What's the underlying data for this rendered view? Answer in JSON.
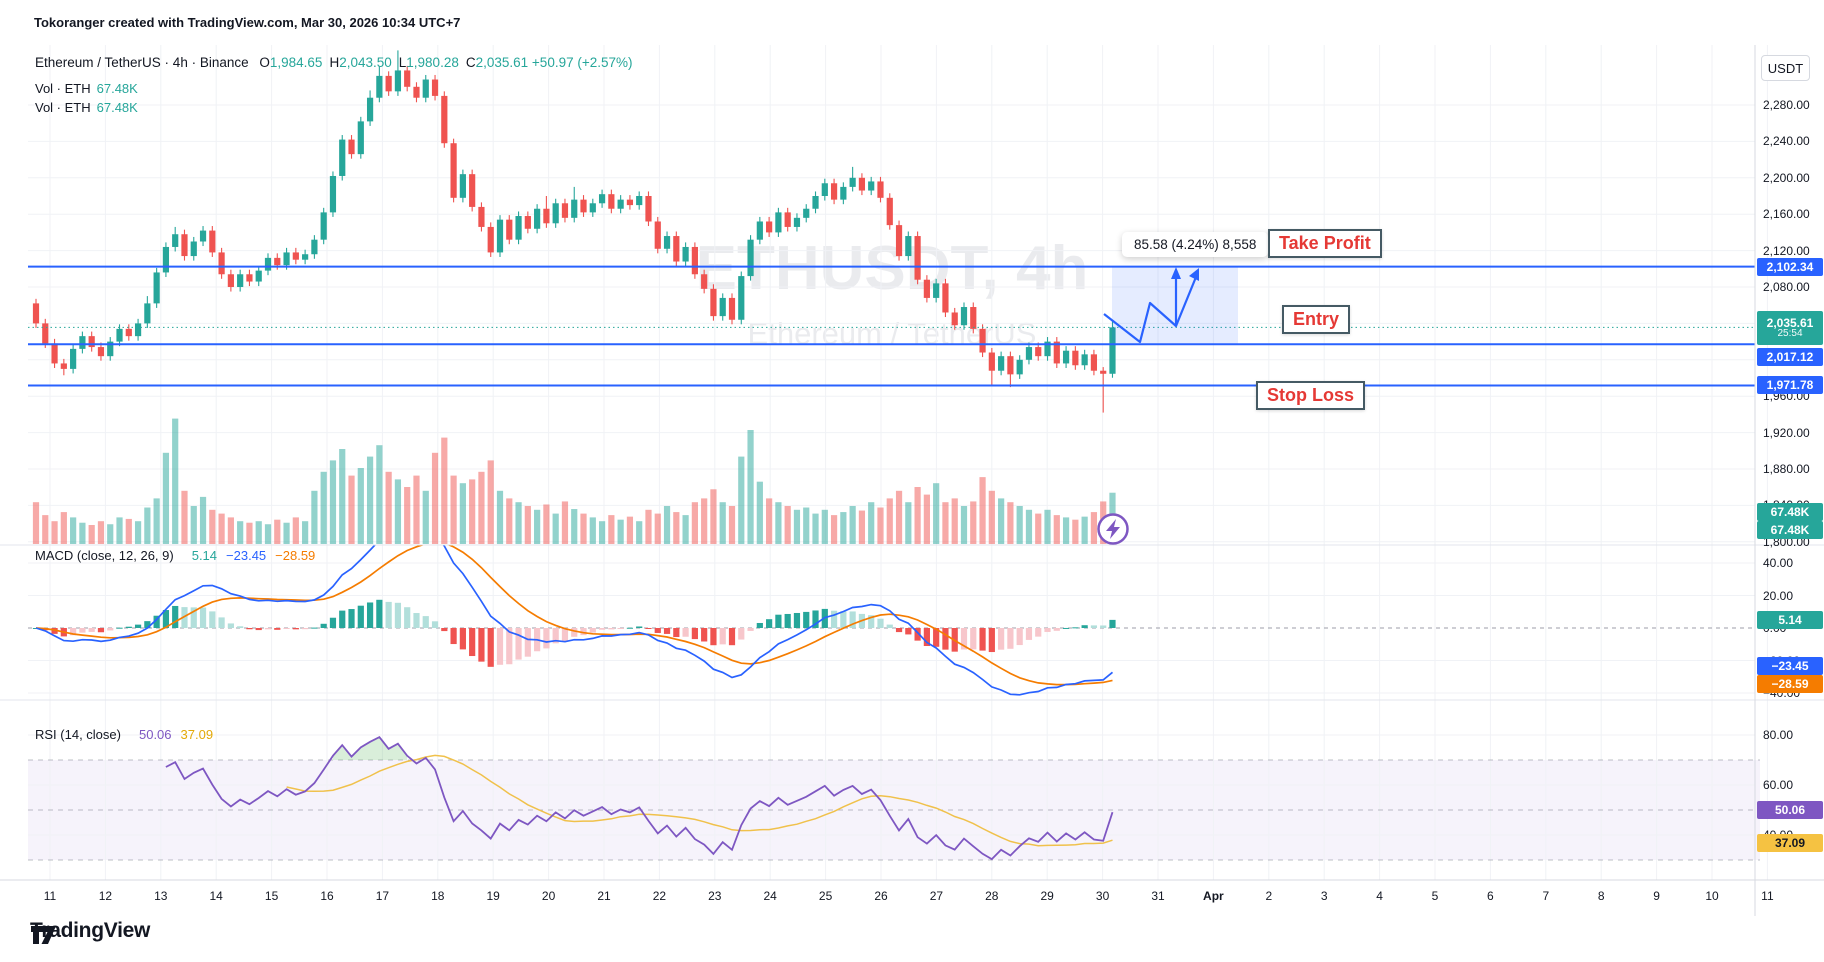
{
  "attribution": "Tokoranger created with TradingView.com, Mar 30, 2026 10:34 UTC+7",
  "header": {
    "symbol_title": "Ethereum / TetherUS · 4h · Binance",
    "ohlc": [
      {
        "k": "O",
        "v": "1,984.65"
      },
      {
        "k": "H",
        "v": "2,043.50"
      },
      {
        "k": "L",
        "v": "1,980.28"
      },
      {
        "k": "C",
        "v": "2,035.61"
      }
    ],
    "change": "+50.97 (+2.57%)",
    "volume_rows": [
      {
        "label": "Vol · ETH",
        "value": "67.48K"
      },
      {
        "label": "Vol · ETH",
        "value": "67.48K"
      }
    ]
  },
  "watermark": {
    "line1": "ETHUSDT, 4h",
    "line2": "Ethereum / TetherUS"
  },
  "price_scale": {
    "currency": "USDT"
  },
  "annotations": {
    "take_profit": "Take Profit",
    "entry": "Entry",
    "stop_loss": "Stop Loss",
    "tooltip": "85.58 (4.24%) 8,558"
  },
  "legends": {
    "macd": {
      "title": "MACD (close, 12, 26, 9)",
      "values": [
        {
          "text": "5.14",
          "color": "#26a69a"
        },
        {
          "text": "−23.45",
          "color": "#2962ff"
        },
        {
          "text": "−28.59",
          "color": "#f57c00"
        }
      ]
    },
    "rsi": {
      "title": "RSI (14, close)",
      "values": [
        {
          "text": "50.06",
          "color": "#7e57c2"
        },
        {
          "text": "37.09",
          "color": "#e3a908"
        }
      ]
    }
  },
  "chips": [
    {
      "id": "tp",
      "text": "2,102.34",
      "bg": "#2962ff",
      "fg": "#fff"
    },
    {
      "id": "last",
      "text": "2,035.61",
      "sub": "25:54",
      "bg": "#26a69a",
      "fg": "#fff"
    },
    {
      "id": "entry",
      "text": "2,017.12",
      "bg": "#2962ff",
      "fg": "#fff"
    },
    {
      "id": "sl",
      "text": "1,971.78",
      "bg": "#2962ff",
      "fg": "#fff"
    },
    {
      "id": "vol1",
      "text": "67.48K",
      "bg": "#26a69a",
      "fg": "#fff"
    },
    {
      "id": "vol2",
      "text": "67.48K",
      "bg": "#26a69a",
      "fg": "#fff"
    },
    {
      "id": "hist",
      "text": "5.14",
      "bg": "#26a69a",
      "fg": "#fff"
    },
    {
      "id": "macd_line",
      "text": "−23.45",
      "bg": "#2962ff",
      "fg": "#fff"
    },
    {
      "id": "signal",
      "text": "−28.59",
      "bg": "#f57c00",
      "fg": "#fff"
    },
    {
      "id": "rsi",
      "text": "50.06",
      "bg": "#7e57c2",
      "fg": "#fff"
    },
    {
      "id": "rsi_ma",
      "text": "37.09",
      "bg": "#f5c242",
      "fg": "#131722"
    }
  ],
  "logo_text": "TradingView",
  "colors": {
    "up": "#26a69a",
    "down": "#ef5350",
    "level_line": "#2962ff",
    "last_price_line": "#26a69a",
    "macd_line": "#2962ff",
    "signal_line": "#f57c00",
    "hist_pos": "#26a69a",
    "hist_pos_weak": "#b2dfdb",
    "hist_neg": "#ef5350",
    "hist_neg_weak": "#f7c6cb",
    "rsi_line": "#7e57c2",
    "rsi_ma_line": "#f0c14b",
    "grid": "#f0f2f6",
    "axis_border": "#d7dae0"
  },
  "chart_data": {
    "type": "candlestick",
    "symbol": "ETHUSDT",
    "interval": "4h",
    "exchange": "Binance",
    "title": "Ethereum / TetherUS · 4h · Binance",
    "levels": {
      "take_profit": 2102.34,
      "entry": 2017.12,
      "stop_loss": 1971.78,
      "last_price": 2035.61
    },
    "last_bar_countdown": "25:54",
    "projection_label": "85.58 (4.24%) 8,558",
    "price_axis_ticks": [
      2280,
      2240,
      2200,
      2160,
      2120,
      2080,
      2040,
      2000,
      1960,
      1920,
      1880,
      1840,
      1800
    ],
    "macd_axis_ticks": [
      40,
      20,
      0,
      -20,
      -40
    ],
    "rsi_axis_ticks": [
      80,
      60,
      40
    ],
    "rsi_bands": [
      70,
      50,
      30
    ],
    "time_labels": [
      "11",
      "12",
      "13",
      "14",
      "15",
      "16",
      "17",
      "18",
      "19",
      "20",
      "21",
      "22",
      "23",
      "24",
      "25",
      "26",
      "27",
      "28",
      "29",
      "30",
      "31",
      "Apr",
      "2",
      "3",
      "4",
      "5",
      "6",
      "7",
      "8",
      "9",
      "10",
      "11"
    ],
    "candles": [
      [
        2062,
        2067,
        2035,
        2040
      ],
      [
        2040,
        2045,
        2013,
        2018
      ],
      [
        2018,
        2023,
        1991,
        1996
      ],
      [
        1996,
        2001,
        1983,
        1990
      ],
      [
        1990,
        2017,
        1985,
        2012
      ],
      [
        2012,
        2031,
        2007,
        2026
      ],
      [
        2026,
        2031,
        2009,
        2014
      ],
      [
        2014,
        2019,
        1999,
        2004
      ],
      [
        2004,
        2025,
        1999,
        2020
      ],
      [
        2020,
        2039,
        2015,
        2034
      ],
      [
        2034,
        2039,
        2021,
        2026
      ],
      [
        2026,
        2045,
        2021,
        2040
      ],
      [
        2040,
        2070,
        2035,
        2062
      ],
      [
        2062,
        2101,
        2057,
        2096
      ],
      [
        2096,
        2129,
        2091,
        2124
      ],
      [
        2124,
        2146,
        2119,
        2138
      ],
      [
        2138,
        2143,
        2109,
        2114
      ],
      [
        2114,
        2135,
        2109,
        2130
      ],
      [
        2130,
        2147,
        2125,
        2142
      ],
      [
        2142,
        2147,
        2113,
        2118
      ],
      [
        2118,
        2123,
        2089,
        2094
      ],
      [
        2094,
        2099,
        2075,
        2080
      ],
      [
        2080,
        2099,
        2075,
        2094
      ],
      [
        2094,
        2099,
        2081,
        2086
      ],
      [
        2086,
        2103,
        2081,
        2098
      ],
      [
        2098,
        2117,
        2093,
        2112
      ],
      [
        2112,
        2117,
        2099,
        2104
      ],
      [
        2104,
        2123,
        2099,
        2118
      ],
      [
        2118,
        2123,
        2105,
        2110
      ],
      [
        2110,
        2121,
        2105,
        2116
      ],
      [
        2116,
        2137,
        2111,
        2132
      ],
      [
        2132,
        2167,
        2127,
        2162
      ],
      [
        2162,
        2207,
        2157,
        2202
      ],
      [
        2202,
        2247,
        2197,
        2242
      ],
      [
        2242,
        2247,
        2221,
        2226
      ],
      [
        2226,
        2267,
        2221,
        2262
      ],
      [
        2262,
        2296,
        2257,
        2288
      ],
      [
        2288,
        2322,
        2283,
        2312
      ],
      [
        2312,
        2317,
        2290,
        2295
      ],
      [
        2295,
        2340,
        2290,
        2318
      ],
      [
        2318,
        2323,
        2295,
        2300
      ],
      [
        2300,
        2305,
        2283,
        2288
      ],
      [
        2288,
        2313,
        2283,
        2308
      ],
      [
        2308,
        2313,
        2285,
        2290
      ],
      [
        2290,
        2295,
        2233,
        2238
      ],
      [
        2238,
        2243,
        2173,
        2178
      ],
      [
        2178,
        2209,
        2173,
        2204
      ],
      [
        2204,
        2209,
        2163,
        2168
      ],
      [
        2168,
        2173,
        2141,
        2146
      ],
      [
        2146,
        2151,
        2113,
        2118
      ],
      [
        2118,
        2159,
        2113,
        2154
      ],
      [
        2154,
        2159,
        2127,
        2132
      ],
      [
        2132,
        2163,
        2127,
        2158
      ],
      [
        2158,
        2163,
        2139,
        2144
      ],
      [
        2144,
        2171,
        2139,
        2166
      ],
      [
        2166,
        2180,
        2145,
        2150
      ],
      [
        2150,
        2177,
        2145,
        2172
      ],
      [
        2172,
        2177,
        2151,
        2156
      ],
      [
        2156,
        2190,
        2151,
        2176
      ],
      [
        2176,
        2181,
        2157,
        2162
      ],
      [
        2162,
        2177,
        2157,
        2172
      ],
      [
        2172,
        2187,
        2167,
        2182
      ],
      [
        2182,
        2187,
        2161,
        2166
      ],
      [
        2166,
        2181,
        2161,
        2176
      ],
      [
        2176,
        2181,
        2165,
        2170
      ],
      [
        2170,
        2185,
        2165,
        2180
      ],
      [
        2180,
        2185,
        2147,
        2152
      ],
      [
        2152,
        2157,
        2117,
        2122
      ],
      [
        2122,
        2141,
        2117,
        2136
      ],
      [
        2136,
        2141,
        2103,
        2108
      ],
      [
        2108,
        2129,
        2103,
        2124
      ],
      [
        2124,
        2129,
        2089,
        2094
      ],
      [
        2094,
        2099,
        2073,
        2078
      ],
      [
        2078,
        2083,
        2043,
        2048
      ],
      [
        2048,
        2073,
        2043,
        2068
      ],
      [
        2068,
        2073,
        2039,
        2044
      ],
      [
        2044,
        2097,
        2039,
        2092
      ],
      [
        2092,
        2137,
        2087,
        2132
      ],
      [
        2132,
        2157,
        2127,
        2152
      ],
      [
        2152,
        2157,
        2135,
        2140
      ],
      [
        2140,
        2167,
        2135,
        2162
      ],
      [
        2162,
        2167,
        2141,
        2146
      ],
      [
        2146,
        2161,
        2141,
        2156
      ],
      [
        2156,
        2171,
        2151,
        2166
      ],
      [
        2166,
        2185,
        2161,
        2180
      ],
      [
        2180,
        2199,
        2175,
        2194
      ],
      [
        2194,
        2199,
        2171,
        2176
      ],
      [
        2176,
        2195,
        2171,
        2190
      ],
      [
        2190,
        2212,
        2185,
        2200
      ],
      [
        2200,
        2205,
        2181,
        2186
      ],
      [
        2186,
        2201,
        2181,
        2196
      ],
      [
        2196,
        2201,
        2173,
        2178
      ],
      [
        2178,
        2183,
        2143,
        2148
      ],
      [
        2148,
        2153,
        2109,
        2114
      ],
      [
        2114,
        2141,
        2109,
        2136
      ],
      [
        2136,
        2141,
        2083,
        2088
      ],
      [
        2088,
        2093,
        2063,
        2068
      ],
      [
        2068,
        2089,
        2063,
        2084
      ],
      [
        2084,
        2089,
        2047,
        2052
      ],
      [
        2052,
        2057,
        2033,
        2038
      ],
      [
        2038,
        2063,
        2033,
        2058
      ],
      [
        2058,
        2063,
        2029,
        2034
      ],
      [
        2034,
        2039,
        2003,
        2008
      ],
      [
        2008,
        2013,
        1972,
        1988
      ],
      [
        1988,
        2009,
        1983,
        2004
      ],
      [
        2004,
        2009,
        1970,
        1984
      ],
      [
        1984,
        2005,
        1979,
        2000
      ],
      [
        2000,
        2019,
        1995,
        2014
      ],
      [
        2014,
        2019,
        1999,
        2004
      ],
      [
        2004,
        2025,
        1999,
        2020
      ],
      [
        2020,
        2025,
        1991,
        1996
      ],
      [
        1996,
        2015,
        1991,
        2010
      ],
      [
        2010,
        2015,
        1989,
        1994
      ],
      [
        1994,
        2011,
        1989,
        2006
      ],
      [
        2006,
        2011,
        1983,
        1988
      ],
      [
        1988,
        1992,
        1942,
        1984.65
      ],
      [
        1984.65,
        2043.5,
        1980.28,
        2035.61
      ]
    ],
    "volumes": [
      55,
      38,
      30,
      42,
      35,
      28,
      25,
      30,
      26,
      35,
      33,
      30,
      48,
      60,
      120,
      165,
      70,
      50,
      62,
      45,
      40,
      35,
      30,
      28,
      30,
      26,
      32,
      28,
      35,
      30,
      70,
      95,
      110,
      125,
      90,
      100,
      115,
      130,
      95,
      85,
      75,
      90,
      70,
      120,
      140,
      90,
      80,
      85,
      95,
      110,
      70,
      60,
      55,
      50,
      45,
      52,
      40,
      56,
      46,
      40,
      35,
      30,
      38,
      32,
      36,
      30,
      45,
      40,
      50,
      42,
      38,
      55,
      60,
      72,
      55,
      50,
      115,
      150,
      82,
      60,
      55,
      50,
      45,
      48,
      40,
      45,
      38,
      42,
      50,
      44,
      55,
      48,
      60,
      70,
      55,
      75,
      65,
      80,
      55,
      60,
      50,
      56,
      88,
      70,
      60,
      55,
      50,
      45,
      40,
      45,
      38,
      35,
      32,
      36,
      42,
      56,
      67.48
    ]
  }
}
